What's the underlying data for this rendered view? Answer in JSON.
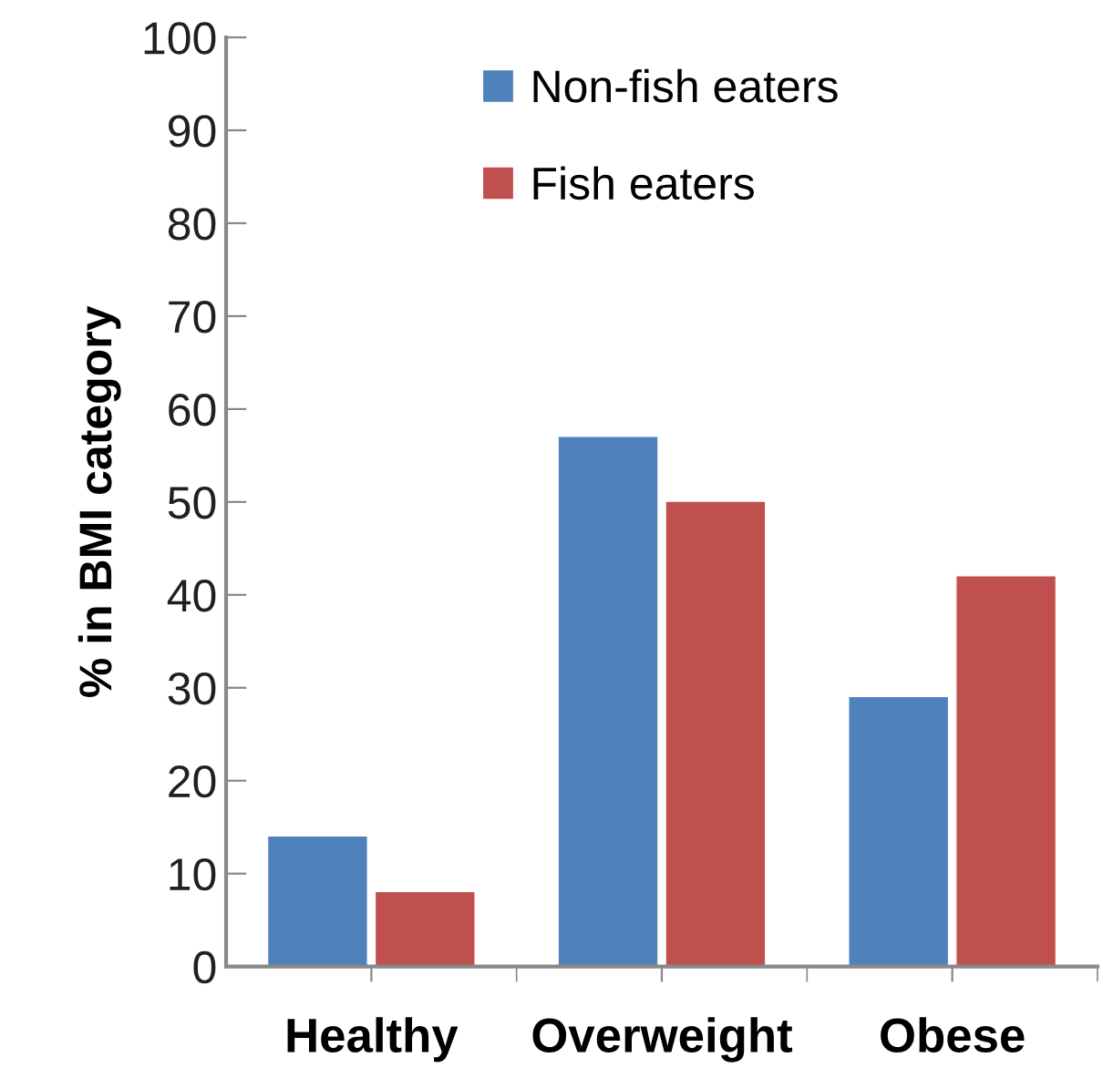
{
  "chart_data": {
    "type": "bar",
    "ylabel": "% in BMI category",
    "categories": [
      "Healthy",
      "Overweight",
      "Obese"
    ],
    "series": [
      {
        "name": "Non-fish eaters",
        "color": "#4f81bd",
        "values": [
          14,
          57,
          29
        ]
      },
      {
        "name": "Fish eaters",
        "color": "#c0504d",
        "values": [
          8,
          50,
          42
        ]
      }
    ],
    "ylim": [
      0,
      100
    ],
    "yticks": [
      0,
      10,
      20,
      30,
      40,
      50,
      60,
      70,
      80,
      90,
      100
    ],
    "grid": false,
    "legend": "top"
  }
}
